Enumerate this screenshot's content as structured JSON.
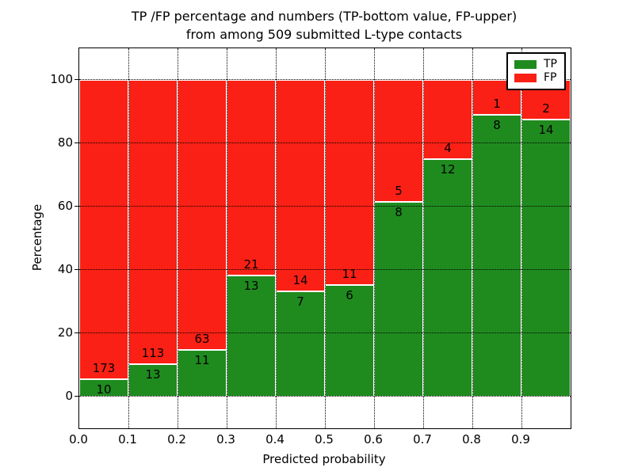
{
  "figure": {
    "title_line1": "TP /FP percentage and numbers (TP-bottom value, FP-upper)",
    "title_line2": "from among 509 submitted L-type contacts",
    "xlabel": "Predicted probability",
    "ylabel": "Percentage"
  },
  "chart_data": {
    "type": "bar",
    "stacked": true,
    "units": "percent",
    "title": "TP /FP percentage and numbers (TP-bottom value, FP-upper) from among 509 submitted L-type contacts",
    "xlabel": "Predicted probability",
    "ylabel": "Percentage",
    "total_contacts": 509,
    "bin_width": 0.1,
    "categories": [
      "0.0-0.1",
      "0.1-0.2",
      "0.2-0.3",
      "0.3-0.4",
      "0.4-0.5",
      "0.5-0.6",
      "0.6-0.7",
      "0.7-0.8",
      "0.8-0.9",
      "0.9-1.0"
    ],
    "series": [
      {
        "name": "TP",
        "color": "#1f8b1f",
        "counts": [
          10,
          13,
          11,
          13,
          7,
          6,
          8,
          12,
          8,
          14
        ],
        "percent": [
          5.5,
          10.3,
          14.9,
          38.2,
          33.3,
          35.3,
          61.5,
          75.0,
          88.9,
          87.5
        ]
      },
      {
        "name": "FP",
        "color": "#fa2015",
        "counts": [
          173,
          113,
          63,
          21,
          14,
          11,
          5,
          4,
          1,
          2
        ],
        "percent": [
          94.5,
          89.7,
          85.1,
          61.8,
          66.7,
          64.7,
          38.5,
          25.0,
          11.1,
          12.5
        ]
      }
    ],
    "xlim": [
      0.0,
      1.0
    ],
    "ylim": [
      -10,
      110
    ],
    "yticks": [
      0,
      20,
      40,
      60,
      80,
      100
    ],
    "xtick_labels": [
      "0.0",
      "0.1",
      "0.2",
      "0.3",
      "0.4",
      "0.5",
      "0.6",
      "0.7",
      "0.8",
      "0.9"
    ],
    "grid": {
      "visible": true,
      "style": "dotted",
      "color": "#000000"
    },
    "legend": {
      "position": "upper right",
      "entries": [
        "TP",
        "FP"
      ]
    }
  }
}
